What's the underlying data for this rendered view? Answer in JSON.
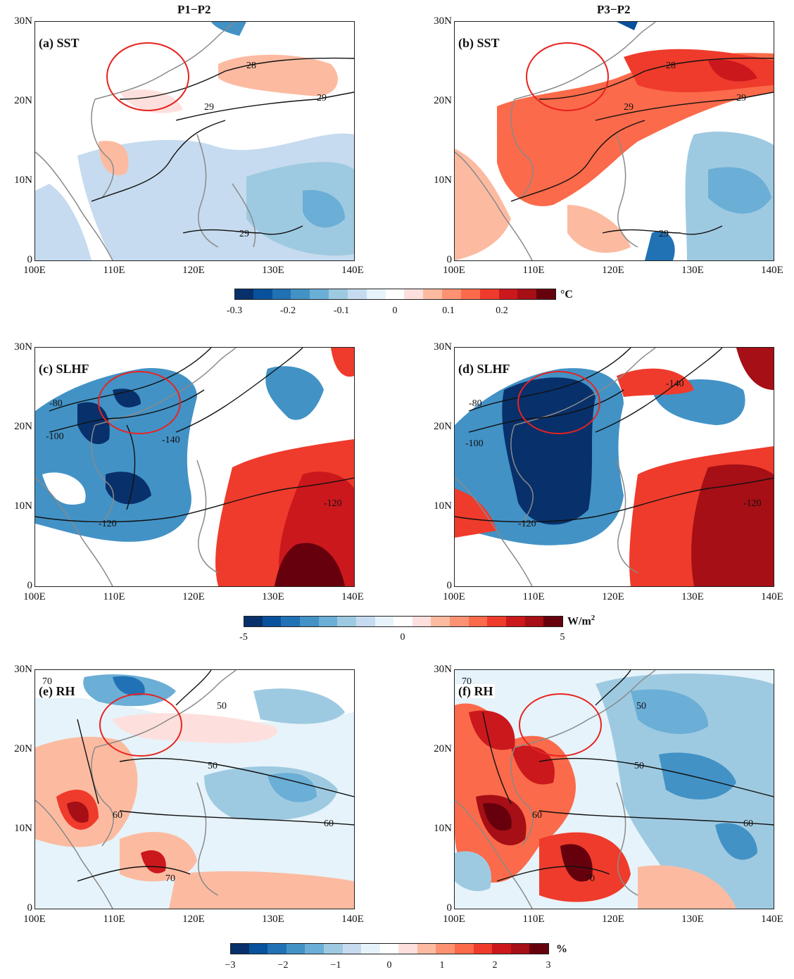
{
  "columns": {
    "left": "P1−P2",
    "right": "P3−P2"
  },
  "axes": {
    "lat_labels": [
      "30N",
      "20N",
      "10N",
      "0"
    ],
    "lon_labels": [
      "100E",
      "110E",
      "120E",
      "130E",
      "140E"
    ]
  },
  "panels": {
    "a": {
      "label": "(a) SST",
      "contours": [
        "28",
        "29"
      ]
    },
    "b": {
      "label": "(b) SST",
      "contours": [
        "28",
        "29"
      ]
    },
    "c": {
      "label": "(c) SLHF",
      "contours": [
        "-80",
        "-100",
        "-120",
        "-140"
      ]
    },
    "d": {
      "label": "(d) SLHF",
      "contours": [
        "-80",
        "-100",
        "-120",
        "-140"
      ]
    },
    "e": {
      "label": "(e) RH",
      "contours": [
        "50",
        "60",
        "70"
      ]
    },
    "f": {
      "label": "(f) RH",
      "contours": [
        "50",
        "60",
        "70"
      ]
    }
  },
  "colorbars": {
    "sst": {
      "unit": "°C",
      "ticks": [
        "-0.3",
        "-0.2",
        "-0.1",
        "0",
        "0.1",
        "0.2"
      ]
    },
    "slhf": {
      "unit": "W/m",
      "unit_sup": "2",
      "ticks": [
        "-5",
        "0",
        "5"
      ]
    },
    "rh": {
      "unit": "%",
      "ticks": [
        "−3",
        "−2",
        "−1",
        "0",
        "1",
        "2",
        "3"
      ]
    }
  },
  "colors": {
    "scale": [
      "#08306b",
      "#08519c",
      "#2171b5",
      "#4292c6",
      "#6baed6",
      "#9ecae1",
      "#c6dbef",
      "#e6f3fa",
      "#ffffff",
      "#fde0dd",
      "#fcbba1",
      "#fc9272",
      "#fb6a4a",
      "#ef3b2c",
      "#cb181d",
      "#a50f15",
      "#67000d"
    ],
    "circle": "#e8231f",
    "contour": "#111111",
    "coast": "#8a8a8a"
  }
}
